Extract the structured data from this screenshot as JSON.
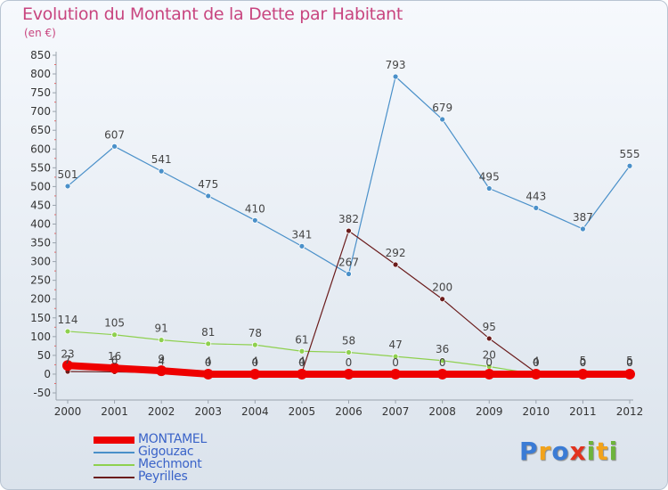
{
  "title": "Evolution du Montant de la Dette par Habitant",
  "subtitle": "(en €)",
  "logo": {
    "text": "Proxiti",
    "letters": [
      "P",
      "r",
      "o",
      "x",
      "i",
      "t",
      "i"
    ]
  },
  "chart_data": {
    "type": "line",
    "x": [
      "2000",
      "2001",
      "2002",
      "2003",
      "2004",
      "2005",
      "2006",
      "2007",
      "2008",
      "2009",
      "2010",
      "2011",
      "2012"
    ],
    "ylim": [
      -50,
      850
    ],
    "yticks": [
      -50,
      0,
      50,
      100,
      150,
      200,
      250,
      300,
      350,
      400,
      450,
      500,
      550,
      600,
      650,
      700,
      750,
      800,
      850
    ],
    "grid": false,
    "legend_position": "bottom-left",
    "series": [
      {
        "name": "MONTAMEL",
        "color": "#ee0000",
        "values": [
          23,
          16,
          9,
          0,
          0,
          0,
          0,
          0,
          0,
          0,
          0,
          0,
          0
        ],
        "labels": [
          "23",
          "16",
          "9",
          "0",
          "0",
          "0",
          "0",
          "0",
          "0",
          "0",
          "0",
          "0",
          "0"
        ]
      },
      {
        "name": "Gigouzac",
        "color": "#4a90c9",
        "values": [
          501,
          607,
          541,
          475,
          410,
          341,
          267,
          793,
          679,
          495,
          443,
          387,
          555
        ],
        "labels": [
          "501",
          "607",
          "541",
          "475",
          "410",
          "341",
          "267",
          "793",
          "679",
          "495",
          "443",
          "387",
          "555"
        ]
      },
      {
        "name": "Mechmont",
        "color": "#8ed04e",
        "values": [
          114,
          105,
          91,
          81,
          78,
          61,
          58,
          47,
          36,
          20,
          0,
          0,
          0
        ],
        "labels": [
          "114",
          "105",
          "91",
          "81",
          "78",
          "61",
          "58",
          "47",
          "36",
          "20",
          "0",
          "0",
          "0"
        ]
      },
      {
        "name": "Peyrilles",
        "color": "#6b1c1c",
        "values": [
          7,
          6,
          4,
          4,
          4,
          4,
          382,
          292,
          200,
          95,
          4,
          5,
          5
        ],
        "labels": [
          "7",
          "6",
          "4",
          "4",
          "4",
          "4",
          "382",
          "292",
          "200",
          "95",
          "4",
          "5",
          "5"
        ]
      }
    ]
  }
}
